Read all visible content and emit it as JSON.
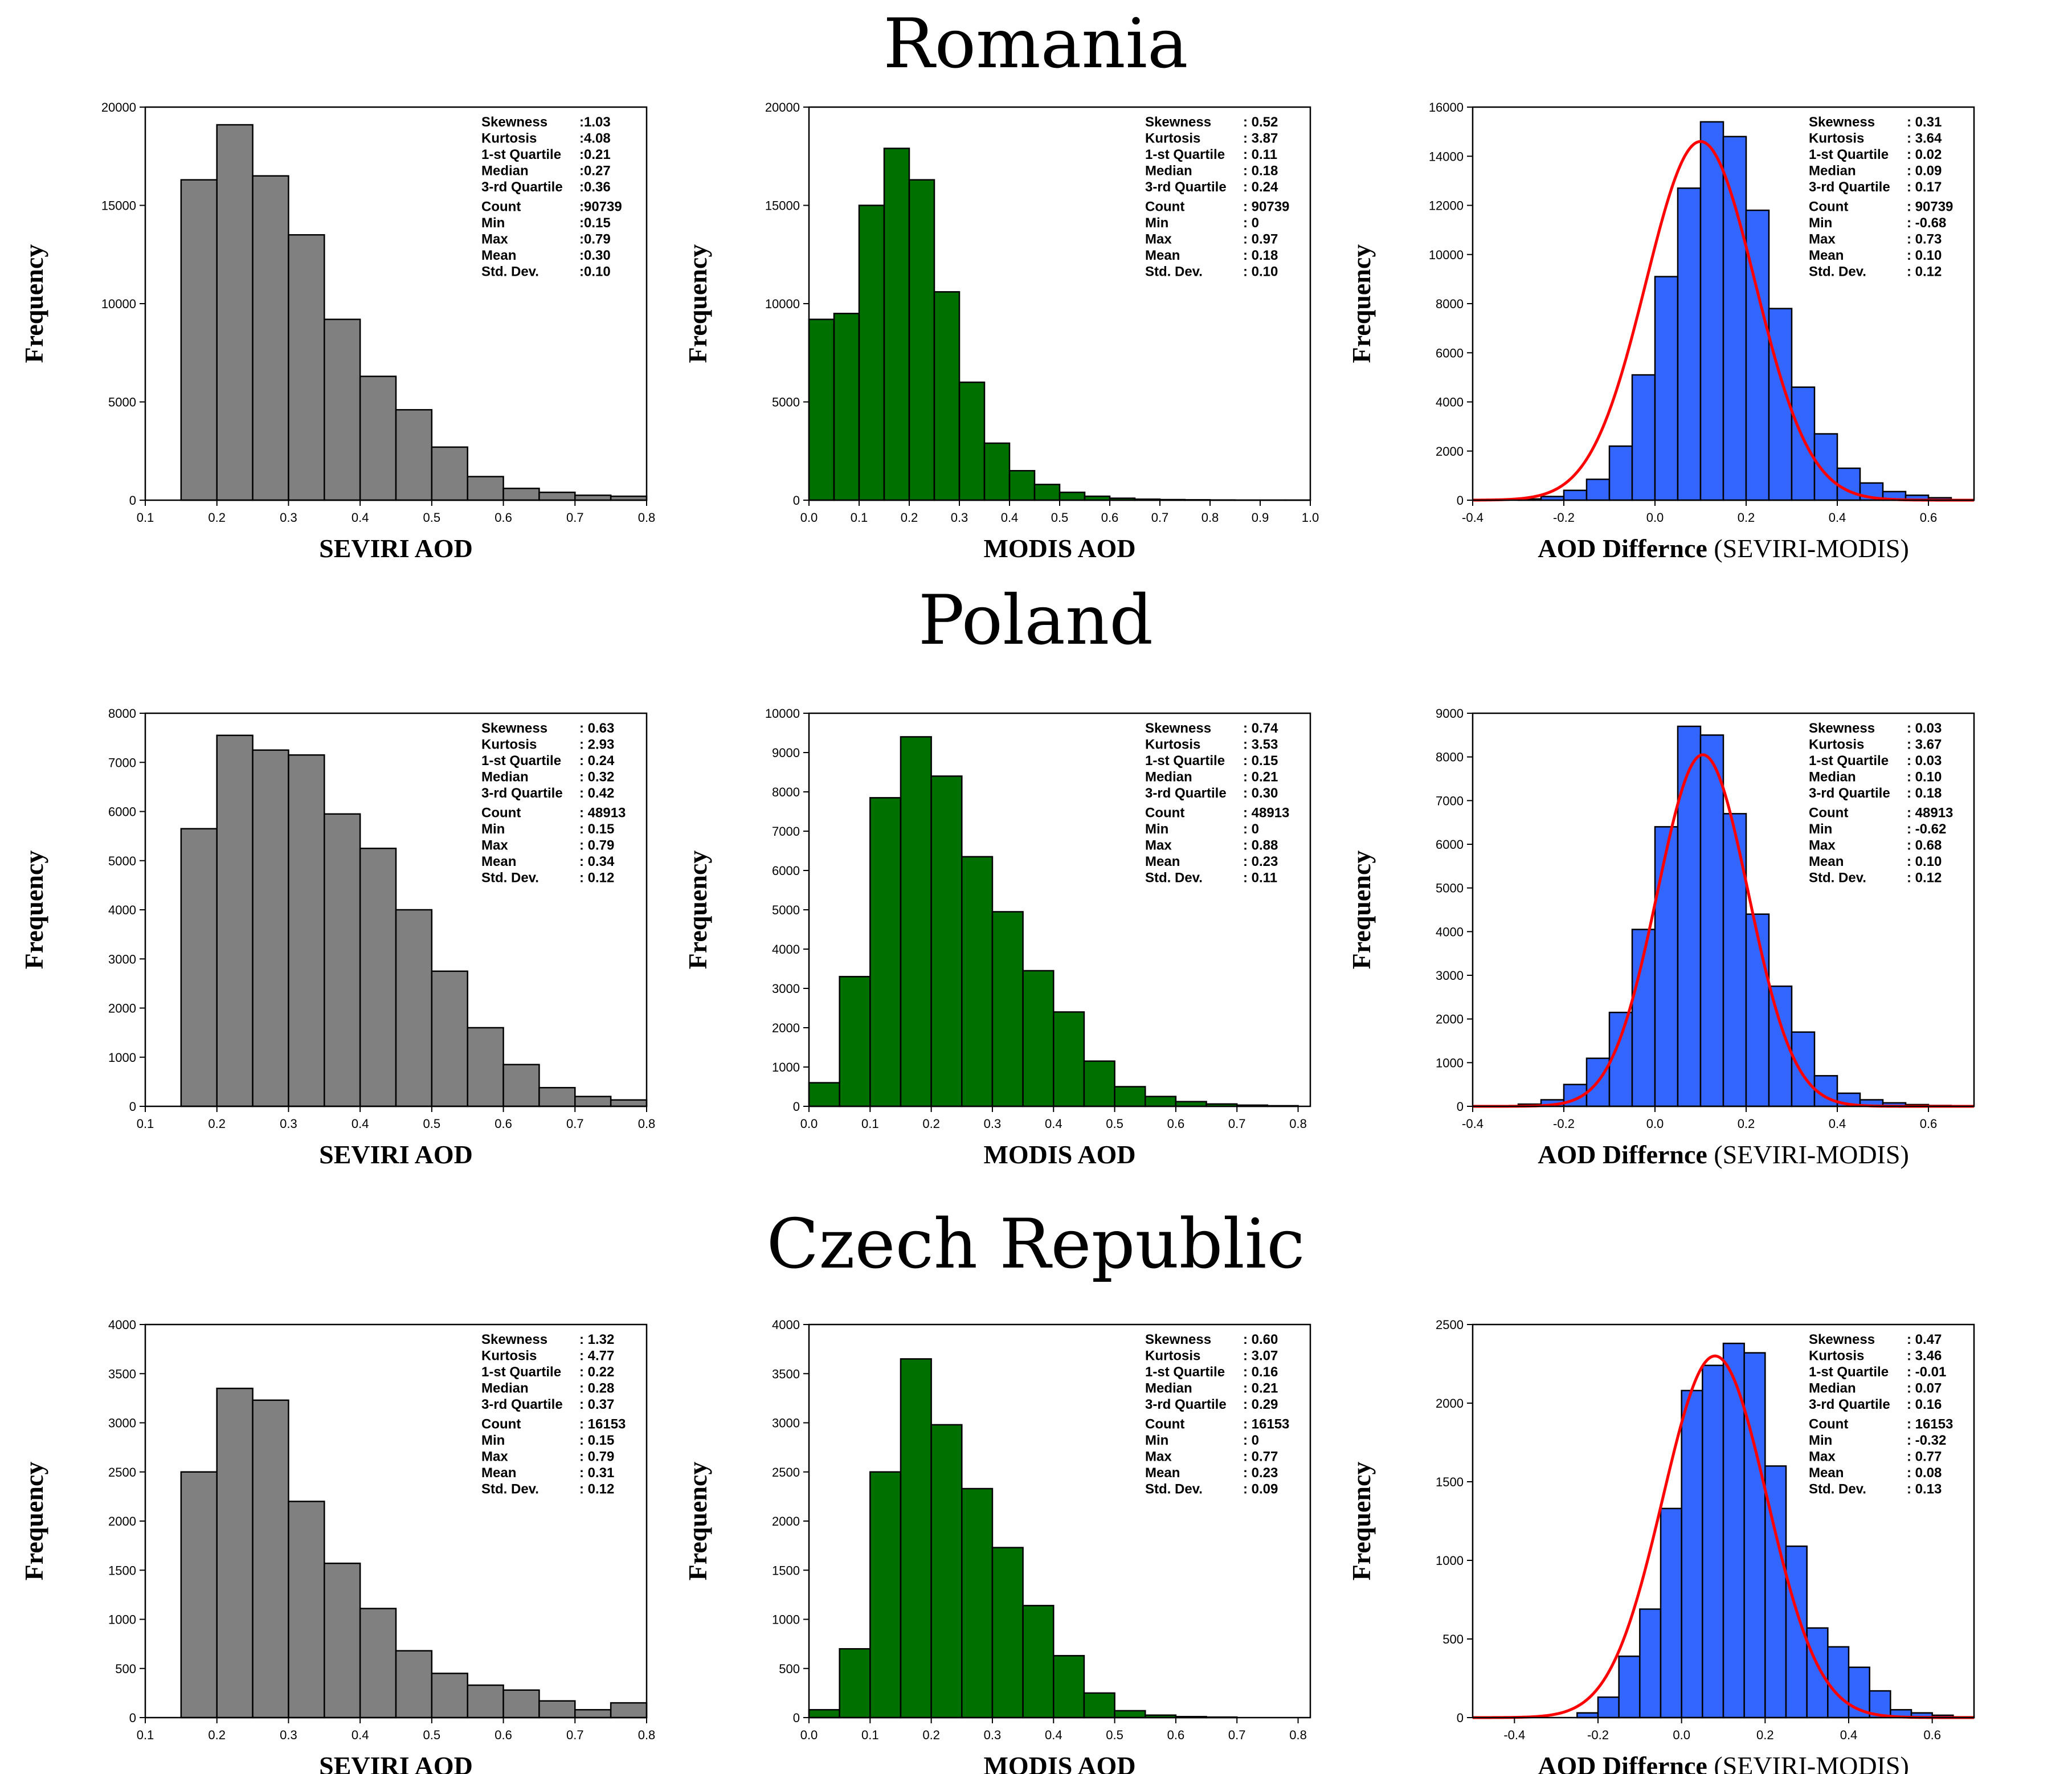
{
  "figure": {
    "rows": [
      {
        "country": "Romania"
      },
      {
        "country": "Poland"
      },
      {
        "country": "Czech Republic"
      }
    ]
  },
  "colors": {
    "seviri": "#808080",
    "modis": "#007000",
    "diff": "#3366ff",
    "fit": "#ff0000",
    "edge": "#000000"
  },
  "stat_labels": [
    "Skewness",
    "Kurtosis",
    "1-st Quartile",
    "Median",
    "3-rd Quartile",
    "Count",
    "Min",
    "Max",
    "Mean",
    "Std. Dev."
  ],
  "chart_data": [
    {
      "type": "bar",
      "row": 0,
      "col": 0,
      "title": "Romania",
      "color_key": "seviri",
      "xlabel": "SEVIRI AOD",
      "xlabel_extra": "",
      "ylabel": "Frequency",
      "xlim": [
        0.1,
        0.8
      ],
      "ylim": [
        0,
        20000
      ],
      "xticks": [
        0.1,
        0.2,
        0.3,
        0.4,
        0.5,
        0.6,
        0.7,
        0.8
      ],
      "xtick_labels": [
        "0.1",
        "0.2",
        "0.3",
        "0.4",
        "0.5",
        "0.6",
        "0.7",
        "0.8"
      ],
      "yticks": [
        0,
        5000,
        10000,
        15000,
        20000
      ],
      "ytick_labels": [
        "0",
        "5000",
        "10000",
        "15000",
        "20000"
      ],
      "bins": {
        "start": 0.15,
        "width": 0.05,
        "values": [
          16300,
          19100,
          16500,
          13500,
          9200,
          6300,
          4600,
          2700,
          1200,
          600,
          400,
          250,
          200
        ]
      },
      "stats": [
        ":1.03",
        ":4.08",
        ":0.21",
        ":0.27",
        ":0.36",
        ":90739",
        ":0.15",
        ":0.79",
        ":0.30",
        ":0.10"
      ]
    },
    {
      "type": "bar",
      "row": 0,
      "col": 1,
      "title": "Romania",
      "color_key": "modis",
      "xlabel": "MODIS AOD",
      "xlabel_extra": "",
      "ylabel": "Frequency",
      "xlim": [
        0.0,
        1.0
      ],
      "ylim": [
        0,
        20000
      ],
      "xticks": [
        0.0,
        0.1,
        0.2,
        0.3,
        0.4,
        0.5,
        0.6,
        0.7,
        0.8,
        0.9,
        1.0
      ],
      "xtick_labels": [
        "0.0",
        "0.1",
        "0.2",
        "0.3",
        "0.4",
        "0.5",
        "0.6",
        "0.7",
        "0.8",
        "0.9",
        "1.0"
      ],
      "yticks": [
        0,
        5000,
        10000,
        15000,
        20000
      ],
      "ytick_labels": [
        "0",
        "5000",
        "10000",
        "15000",
        "20000"
      ],
      "bins": {
        "start": 0.0,
        "width": 0.05,
        "values": [
          9200,
          9500,
          15000,
          17900,
          16300,
          10600,
          6000,
          2900,
          1500,
          800,
          400,
          200,
          100,
          50,
          30,
          20,
          10,
          5,
          5,
          5
        ]
      },
      "stats": [
        ": 0.52",
        ": 3.87",
        ": 0.11",
        ": 0.18",
        ": 0.24",
        ": 90739",
        ": 0",
        ": 0.97",
        ": 0.18",
        ": 0.10"
      ]
    },
    {
      "type": "bar",
      "row": 0,
      "col": 2,
      "title": "Romania",
      "color_key": "diff",
      "xlabel": "AOD Differnce",
      "xlabel_extra": " (SEVIRI-MODIS)",
      "ylabel": "Frequency",
      "xlim": [
        -0.4,
        0.7
      ],
      "ylim": [
        0,
        16000
      ],
      "xticks": [
        -0.4,
        -0.2,
        0.0,
        0.2,
        0.4,
        0.6
      ],
      "xtick_labels": [
        "-0.4",
        "-0.2",
        "0.0",
        "0.2",
        "0.4",
        "0.6"
      ],
      "yticks": [
        0,
        2000,
        4000,
        6000,
        8000,
        10000,
        12000,
        14000,
        16000
      ],
      "ytick_labels": [
        "0",
        "2000",
        "4000",
        "6000",
        "8000",
        "10000",
        "12000",
        "14000",
        "16000"
      ],
      "bins": {
        "start": -0.3,
        "width": 0.05,
        "values": [
          50,
          150,
          400,
          850,
          2200,
          5100,
          9100,
          12700,
          15400,
          14800,
          11800,
          7800,
          4600,
          2700,
          1300,
          700,
          350,
          200,
          100
        ]
      },
      "fit": {
        "mean": 0.1,
        "sd": 0.12,
        "peak": 14600
      },
      "stats": [
        ": 0.31",
        ": 3.64",
        ": 0.02",
        ": 0.09",
        ": 0.17",
        ": 90739",
        ": -0.68",
        ": 0.73",
        ": 0.10",
        ": 0.12"
      ]
    },
    {
      "type": "bar",
      "row": 1,
      "col": 0,
      "title": "Poland",
      "color_key": "seviri",
      "xlabel": "SEVIRI AOD",
      "xlabel_extra": "",
      "ylabel": "Frequency",
      "xlim": [
        0.1,
        0.8
      ],
      "ylim": [
        0,
        8000
      ],
      "xticks": [
        0.1,
        0.2,
        0.3,
        0.4,
        0.5,
        0.6,
        0.7,
        0.8
      ],
      "xtick_labels": [
        "0.1",
        "0.2",
        "0.3",
        "0.4",
        "0.5",
        "0.6",
        "0.7",
        "0.8"
      ],
      "yticks": [
        0,
        1000,
        2000,
        3000,
        4000,
        5000,
        6000,
        7000,
        8000
      ],
      "ytick_labels": [
        "0",
        "1000",
        "2000",
        "3000",
        "4000",
        "5000",
        "6000",
        "7000",
        "8000"
      ],
      "bins": {
        "start": 0.15,
        "width": 0.05,
        "values": [
          5650,
          7550,
          7250,
          7150,
          5950,
          5250,
          4000,
          2750,
          1600,
          850,
          380,
          200,
          130
        ]
      },
      "stats": [
        ": 0.63",
        ": 2.93",
        ": 0.24",
        ": 0.32",
        ": 0.42",
        ": 48913",
        ": 0.15",
        ": 0.79",
        ": 0.34",
        ": 0.12"
      ]
    },
    {
      "type": "bar",
      "row": 1,
      "col": 1,
      "title": "Poland",
      "color_key": "modis",
      "xlabel": "MODIS AOD",
      "xlabel_extra": "",
      "ylabel": "Frequency",
      "xlim": [
        0.0,
        0.82
      ],
      "ylim": [
        0,
        10000
      ],
      "xticks": [
        0.0,
        0.1,
        0.2,
        0.3,
        0.4,
        0.5,
        0.6,
        0.7,
        0.8
      ],
      "xtick_labels": [
        "0.0",
        "0.1",
        "0.2",
        "0.3",
        "0.4",
        "0.5",
        "0.6",
        "0.7",
        "0.8"
      ],
      "yticks": [
        0,
        1000,
        2000,
        3000,
        4000,
        5000,
        6000,
        7000,
        8000,
        9000,
        10000
      ],
      "ytick_labels": [
        "0",
        "1000",
        "2000",
        "3000",
        "4000",
        "5000",
        "6000",
        "7000",
        "8000",
        "9000",
        "10000"
      ],
      "bins": {
        "start": 0.0,
        "width": 0.05,
        "values": [
          600,
          3300,
          7850,
          9400,
          8400,
          6350,
          4950,
          3450,
          2400,
          1150,
          500,
          250,
          120,
          60,
          30,
          15
        ]
      },
      "stats": [
        ": 0.74",
        ": 3.53",
        ": 0.15",
        ": 0.21",
        ": 0.30",
        ": 48913",
        ": 0",
        ": 0.88",
        ": 0.23",
        ": 0.11"
      ]
    },
    {
      "type": "bar",
      "row": 1,
      "col": 2,
      "title": "Poland",
      "color_key": "diff",
      "xlabel": "AOD Differnce",
      "xlabel_extra": " (SEVIRI-MODIS)",
      "ylabel": "Frequency",
      "xlim": [
        -0.4,
        0.7
      ],
      "ylim": [
        0,
        9000
      ],
      "xticks": [
        -0.4,
        -0.2,
        0.0,
        0.2,
        0.4,
        0.6
      ],
      "xtick_labels": [
        "-0.4",
        "-0.2",
        "0.0",
        "0.2",
        "0.4",
        "0.6"
      ],
      "yticks": [
        0,
        1000,
        2000,
        3000,
        4000,
        5000,
        6000,
        7000,
        8000,
        9000
      ],
      "ytick_labels": [
        "0",
        "1000",
        "2000",
        "3000",
        "4000",
        "5000",
        "6000",
        "7000",
        "8000",
        "9000"
      ],
      "bins": {
        "start": -0.3,
        "width": 0.05,
        "values": [
          50,
          150,
          500,
          1100,
          2150,
          4050,
          6400,
          8700,
          8500,
          6700,
          4400,
          2750,
          1700,
          700,
          300,
          150,
          80,
          40,
          20
        ]
      },
      "fit": {
        "mean": 0.105,
        "sd": 0.1,
        "peak": 8050
      },
      "stats": [
        ": 0.03",
        ": 3.67",
        ": 0.03",
        ": 0.10",
        ": 0.18",
        ": 48913",
        ": -0.62",
        ": 0.68",
        ": 0.10",
        ": 0.12"
      ]
    },
    {
      "type": "bar",
      "row": 2,
      "col": 0,
      "title": "Czech Republic",
      "color_key": "seviri",
      "xlabel": "SEVIRI AOD",
      "xlabel_extra": "",
      "ylabel": "Frequency",
      "xlim": [
        0.1,
        0.8
      ],
      "ylim": [
        0,
        4000
      ],
      "xticks": [
        0.1,
        0.2,
        0.3,
        0.4,
        0.5,
        0.6,
        0.7,
        0.8
      ],
      "xtick_labels": [
        "0.1",
        "0.2",
        "0.3",
        "0.4",
        "0.5",
        "0.6",
        "0.7",
        "0.8"
      ],
      "yticks": [
        0,
        500,
        1000,
        1500,
        2000,
        2500,
        3000,
        3500,
        4000
      ],
      "ytick_labels": [
        "0",
        "500",
        "1000",
        "1500",
        "2000",
        "2500",
        "3000",
        "3500",
        "4000"
      ],
      "bins": {
        "start": 0.15,
        "width": 0.05,
        "values": [
          2500,
          3350,
          3230,
          2200,
          1570,
          1110,
          680,
          450,
          330,
          280,
          170,
          80,
          150
        ]
      },
      "stats": [
        ": 1.32",
        ": 4.77",
        ": 0.22",
        ": 0.28",
        ": 0.37",
        ": 16153",
        ": 0.15",
        ": 0.79",
        ": 0.31",
        ": 0.12"
      ]
    },
    {
      "type": "bar",
      "row": 2,
      "col": 1,
      "title": "Czech Republic",
      "color_key": "modis",
      "xlabel": "MODIS AOD",
      "xlabel_extra": "",
      "ylabel": "Frequency",
      "xlim": [
        0.0,
        0.82
      ],
      "ylim": [
        0,
        4000
      ],
      "xticks": [
        0.0,
        0.1,
        0.2,
        0.3,
        0.4,
        0.5,
        0.6,
        0.7,
        0.8
      ],
      "xtick_labels": [
        "0.0",
        "0.1",
        "0.2",
        "0.3",
        "0.4",
        "0.5",
        "0.6",
        "0.7",
        "0.8"
      ],
      "yticks": [
        0,
        500,
        1000,
        1500,
        2000,
        2500,
        3000,
        3500,
        4000
      ],
      "ytick_labels": [
        "0",
        "500",
        "1000",
        "1500",
        "2000",
        "2500",
        "3000",
        "3500",
        "4000"
      ],
      "bins": {
        "start": 0.0,
        "width": 0.05,
        "values": [
          80,
          700,
          2500,
          3650,
          2980,
          2330,
          1730,
          1140,
          630,
          250,
          70,
          25,
          10,
          5
        ]
      },
      "stats": [
        ": 0.60",
        ": 3.07",
        ": 0.16",
        ": 0.21",
        ": 0.29",
        ": 16153",
        ": 0",
        ": 0.77",
        ": 0.23",
        ": 0.09"
      ]
    },
    {
      "type": "bar",
      "row": 2,
      "col": 2,
      "title": "Czech Republic",
      "color_key": "diff",
      "xlabel": "AOD Differnce",
      "xlabel_extra": " (SEVIRI-MODIS)",
      "ylabel": "Frequency",
      "xlim": [
        -0.5,
        0.7
      ],
      "ylim": [
        0,
        2500
      ],
      "xticks": [
        -0.4,
        -0.2,
        0.0,
        0.2,
        0.4,
        0.6
      ],
      "xtick_labels": [
        "-0.4",
        "-0.2",
        "0.0",
        "0.2",
        "0.4",
        "0.6"
      ],
      "yticks": [
        0,
        500,
        1000,
        1500,
        2000,
        2500
      ],
      "ytick_labels": [
        "0",
        "500",
        "1000",
        "1500",
        "2000",
        "2500"
      ],
      "bins": {
        "start": -0.25,
        "width": 0.05,
        "values": [
          30,
          130,
          390,
          690,
          1330,
          2080,
          2240,
          2380,
          2320,
          1600,
          1090,
          570,
          450,
          320,
          170,
          50,
          30,
          15,
          5
        ]
      },
      "fit": {
        "mean": 0.08,
        "sd": 0.125,
        "peak": 2300
      },
      "stats": [
        ": 0.47",
        ": 3.46",
        ": -0.01",
        ": 0.07",
        ": 0.16",
        ": 16153",
        ": -0.32",
        ": 0.77",
        ": 0.08",
        ": 0.13"
      ]
    }
  ]
}
